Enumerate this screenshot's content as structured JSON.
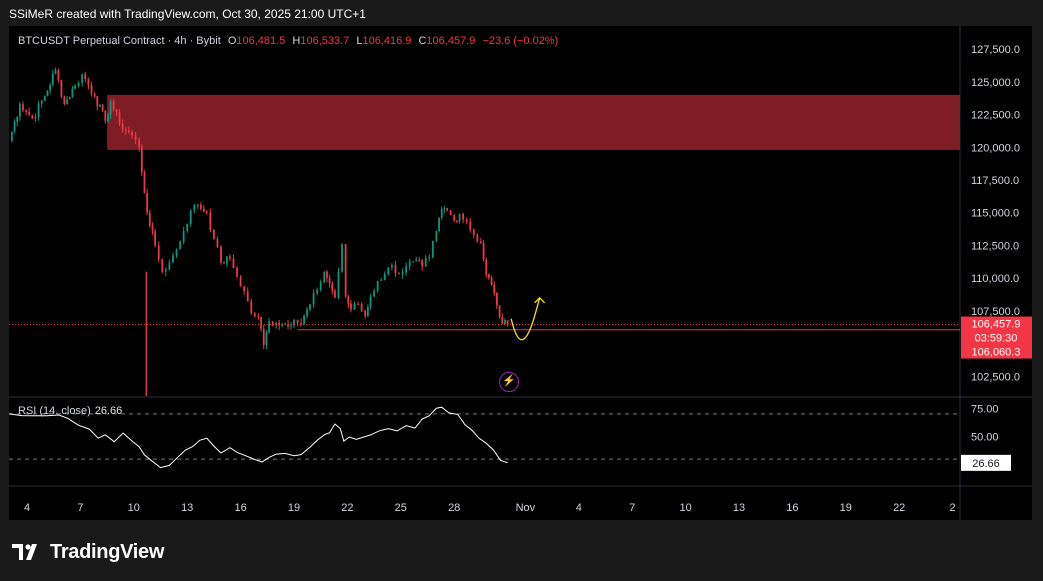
{
  "caption": "SSiMeR created with TradingView.com, Oct 30, 2025 21:00 UTC+1",
  "legend": {
    "symbol": "BTCUSDT Perpetual Contract · 4h · Bybit",
    "o_label": "O",
    "o": "106,481.5",
    "h_label": "H",
    "h": "106,533.7",
    "l_label": "L",
    "l": "106,416.9",
    "c_label": "C",
    "c": "106,457.9",
    "change": "−23.6 (−0.02%)"
  },
  "rsi_legend": {
    "label": "RSI (14, close)",
    "value": "26.66"
  },
  "price_badges": {
    "last": "106,457.9",
    "countdown": "03:59:30",
    "level": "106,060.3",
    "rsi": "26.66"
  },
  "logo_text": "TradingView",
  "colors": {
    "up": "#089981",
    "down": "#f23645",
    "zone": "#7f1d25",
    "arrow": "#f7e017",
    "rsi_line": "#ffffff",
    "background": "#000000"
  },
  "icons": {
    "alert": "bolt-icon",
    "logo": "tradingview-logo-icon"
  },
  "chart_data": [
    {
      "type": "candlestick",
      "timeframe": "4h",
      "y_axis": {
        "range": [
          101000,
          128500
        ],
        "ticks": [
          "127,500.0",
          "125,000.0",
          "122,500.0",
          "120,000.0",
          "117,500.0",
          "115,000.0",
          "112,500.0",
          "110,000.0",
          "107,500.0",
          "102,500.0"
        ],
        "tick_values": [
          127500,
          125000,
          122500,
          120000,
          117500,
          115000,
          112500,
          110000,
          107500,
          102500
        ]
      },
      "x_axis": {
        "ticks": [
          "4",
          "7",
          "10",
          "13",
          "16",
          "19",
          "22",
          "25",
          "28",
          "Nov",
          "4",
          "7",
          "10",
          "13",
          "16",
          "19",
          "22",
          "2"
        ],
        "tick_days": [
          4,
          7,
          10,
          13,
          16,
          19,
          22,
          25,
          28,
          32,
          35,
          38,
          41,
          44,
          47,
          50,
          53,
          56
        ]
      },
      "price_path": [
        [
          3.0,
          120500
        ],
        [
          3.6,
          123300
        ],
        [
          4.3,
          122200
        ],
        [
          5.0,
          123900
        ],
        [
          5.6,
          125900
        ],
        [
          6.1,
          123300
        ],
        [
          6.7,
          124700
        ],
        [
          7.1,
          125600
        ],
        [
          7.8,
          123900
        ],
        [
          8.4,
          122000
        ],
        [
          8.7,
          123500
        ],
        [
          9.2,
          121800
        ],
        [
          9.9,
          120900
        ],
        [
          10.3,
          120000
        ],
        [
          10.6,
          116500
        ],
        [
          10.9,
          114000
        ],
        [
          11.2,
          112500
        ],
        [
          11.6,
          110500
        ],
        [
          12.0,
          111200
        ],
        [
          12.4,
          112200
        ],
        [
          12.8,
          113600
        ],
        [
          13.2,
          115200
        ],
        [
          13.6,
          115600
        ],
        [
          14.1,
          115000
        ],
        [
          14.5,
          113000
        ],
        [
          14.9,
          111200
        ],
        [
          15.4,
          111500
        ],
        [
          15.8,
          110100
        ],
        [
          16.2,
          109000
        ],
        [
          16.6,
          107300
        ],
        [
          17.0,
          107000
        ],
        [
          17.3,
          104900
        ],
        [
          17.6,
          106700
        ],
        [
          18.0,
          106600
        ],
        [
          18.5,
          106500
        ],
        [
          19.0,
          106800
        ],
        [
          19.4,
          106500
        ],
        [
          19.9,
          108000
        ],
        [
          20.3,
          109100
        ],
        [
          20.7,
          110500
        ],
        [
          21.0,
          109600
        ],
        [
          21.3,
          108500
        ],
        [
          21.5,
          110500
        ],
        [
          21.7,
          112600
        ],
        [
          21.9,
          108600
        ],
        [
          22.2,
          107600
        ],
        [
          22.6,
          108000
        ],
        [
          23.0,
          107100
        ],
        [
          23.3,
          108600
        ],
        [
          23.7,
          109800
        ],
        [
          24.1,
          110300
        ],
        [
          24.5,
          111000
        ],
        [
          24.9,
          110300
        ],
        [
          25.3,
          110900
        ],
        [
          25.7,
          111300
        ],
        [
          26.2,
          110900
        ],
        [
          26.6,
          111600
        ],
        [
          27.0,
          113600
        ],
        [
          27.3,
          115300
        ],
        [
          27.6,
          115200
        ],
        [
          28.0,
          114400
        ],
        [
          28.3,
          114900
        ],
        [
          28.7,
          114300
        ],
        [
          29.1,
          113300
        ],
        [
          29.5,
          112700
        ],
        [
          29.8,
          110300
        ],
        [
          30.1,
          109500
        ],
        [
          30.4,
          107900
        ],
        [
          30.7,
          106500
        ],
        [
          31.0,
          106458
        ]
      ],
      "supply_zone": {
        "from_day": 8.5,
        "to_day": "right-edge",
        "low": 119800,
        "high": 124000
      },
      "support_line": {
        "from_day": 19.2,
        "price": 106060.3
      },
      "last_price_line": 106457.9,
      "low_wick": {
        "day": 10.7,
        "low": 101000
      },
      "projection_arrow": {
        "points": [
          [
            31.2,
            106900
          ],
          [
            31.8,
            104800
          ],
          [
            32.6,
            107500
          ],
          [
            32.8,
            108500
          ]
        ]
      }
    },
    {
      "type": "line",
      "title": "RSI (14, close)",
      "y_axis": {
        "ticks": [
          "75.00",
          "50.00"
        ],
        "tick_values": [
          75,
          50
        ],
        "range": [
          15,
          85
        ]
      },
      "levels": [
        70,
        30
      ],
      "last_value": 26.66,
      "series": [
        {
          "values": [
            [
              3.0,
              70
            ],
            [
              3.7,
              68
            ],
            [
              4.4,
              69
            ],
            [
              5.1,
              70
            ],
            [
              5.8,
              68
            ],
            [
              6.3,
              66
            ],
            [
              6.9,
              61
            ],
            [
              7.5,
              55
            ],
            [
              8.0,
              48
            ],
            [
              8.4,
              52
            ],
            [
              8.9,
              47
            ],
            [
              9.4,
              52
            ],
            [
              9.9,
              46
            ],
            [
              10.3,
              42
            ],
            [
              10.6,
              32
            ],
            [
              11.0,
              28
            ],
            [
              11.5,
              23
            ],
            [
              12.0,
              26
            ],
            [
              12.5,
              31
            ],
            [
              12.9,
              38
            ],
            [
              13.3,
              42
            ],
            [
              13.7,
              45
            ],
            [
              14.1,
              48
            ],
            [
              14.5,
              42
            ],
            [
              14.9,
              37
            ],
            [
              15.4,
              39
            ],
            [
              15.8,
              36
            ],
            [
              16.3,
              34
            ],
            [
              16.8,
              28
            ],
            [
              17.2,
              27
            ],
            [
              17.6,
              32
            ],
            [
              18.0,
              36
            ],
            [
              18.5,
              34
            ],
            [
              19.0,
              33
            ],
            [
              19.4,
              35
            ],
            [
              19.9,
              39
            ],
            [
              20.3,
              46
            ],
            [
              20.7,
              52
            ],
            [
              21.0,
              55
            ],
            [
              21.3,
              60
            ],
            [
              21.6,
              57
            ],
            [
              21.8,
              47
            ],
            [
              22.1,
              48
            ],
            [
              22.5,
              47
            ],
            [
              22.9,
              50
            ],
            [
              23.3,
              53
            ],
            [
              23.8,
              54
            ],
            [
              24.3,
              57
            ],
            [
              24.8,
              56
            ],
            [
              25.3,
              58
            ],
            [
              25.8,
              57
            ],
            [
              26.2,
              66
            ],
            [
              26.6,
              70
            ],
            [
              27.0,
              74
            ],
            [
              27.3,
              76
            ],
            [
              27.7,
              72
            ],
            [
              28.2,
              68
            ],
            [
              28.6,
              60
            ],
            [
              29.0,
              56
            ],
            [
              29.4,
              50
            ],
            [
              29.8,
              43
            ],
            [
              30.2,
              38
            ],
            [
              30.6,
              30
            ],
            [
              31.0,
              26.66
            ]
          ]
        }
      ]
    }
  ]
}
